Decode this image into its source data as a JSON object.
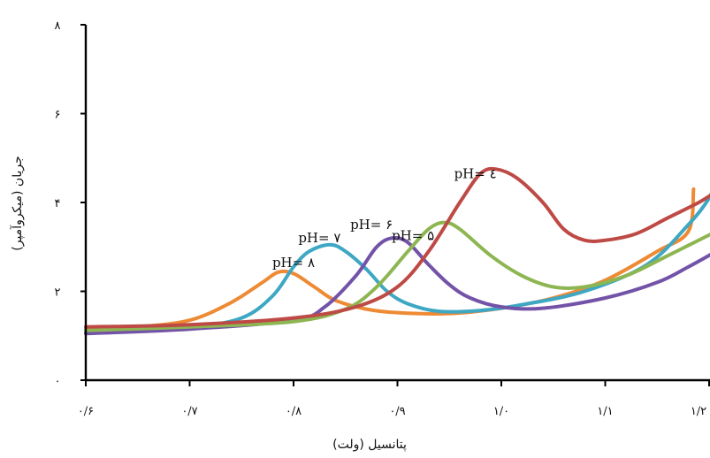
{
  "chart_data": {
    "type": "line",
    "title": "",
    "xlabel": "پتانسیل (ولت)",
    "ylabel": "جریان (میکروآمپر)",
    "xlim": [
      0.6,
      1.2
    ],
    "ylim": [
      0,
      8
    ],
    "x_ticks": [
      {
        "value": 0.6,
        "label": "۰/۶"
      },
      {
        "value": 0.7,
        "label": "۰/۷"
      },
      {
        "value": 0.8,
        "label": "۰/۸"
      },
      {
        "value": 0.9,
        "label": "۰/۹"
      },
      {
        "value": 1.0,
        "label": "۱/۰"
      },
      {
        "value": 1.1,
        "label": "۱/۱"
      },
      {
        "value": 1.2,
        "label": "۱/۲"
      }
    ],
    "y_ticks": [
      {
        "value": 0,
        "label": "۰"
      },
      {
        "value": 2,
        "label": "۲"
      },
      {
        "value": 4,
        "label": "۴"
      },
      {
        "value": 6,
        "label": "۶"
      },
      {
        "value": 8,
        "label": "۸"
      }
    ],
    "grid": false,
    "series": [
      {
        "name": "pH= ۸",
        "color": "#ee8a34",
        "label_at": [
          0.8,
          2.55
        ],
        "points": [
          [
            0.6,
            1.15
          ],
          [
            0.65,
            1.2
          ],
          [
            0.7,
            1.35
          ],
          [
            0.74,
            1.75
          ],
          [
            0.77,
            2.2
          ],
          [
            0.785,
            2.43
          ],
          [
            0.8,
            2.4
          ],
          [
            0.82,
            2.1
          ],
          [
            0.84,
            1.8
          ],
          [
            0.87,
            1.6
          ],
          [
            0.9,
            1.52
          ],
          [
            0.95,
            1.5
          ],
          [
            1.0,
            1.62
          ],
          [
            1.05,
            1.85
          ],
          [
            1.1,
            2.25
          ],
          [
            1.15,
            2.9
          ],
          [
            1.18,
            3.35
          ],
          [
            1.185,
            4.3
          ]
        ]
      },
      {
        "name": "pH= ۷",
        "color": "#3ea7c3",
        "label_at": [
          0.825,
          3.1
        ],
        "points": [
          [
            0.6,
            1.08
          ],
          [
            0.7,
            1.2
          ],
          [
            0.75,
            1.4
          ],
          [
            0.78,
            1.9
          ],
          [
            0.8,
            2.55
          ],
          [
            0.815,
            2.9
          ],
          [
            0.835,
            3.05
          ],
          [
            0.85,
            2.9
          ],
          [
            0.87,
            2.5
          ],
          [
            0.89,
            2.0
          ],
          [
            0.91,
            1.72
          ],
          [
            0.94,
            1.55
          ],
          [
            0.98,
            1.57
          ],
          [
            1.02,
            1.7
          ],
          [
            1.08,
            2.0
          ],
          [
            1.14,
            2.6
          ],
          [
            1.18,
            3.5
          ],
          [
            1.2,
            4.1
          ],
          [
            1.207,
            4.55
          ]
        ]
      },
      {
        "name": "pH= ۶",
        "color": "#7353a8",
        "label_at": [
          0.875,
          3.4
        ],
        "points": [
          [
            0.6,
            1.05
          ],
          [
            0.7,
            1.15
          ],
          [
            0.8,
            1.35
          ],
          [
            0.83,
            1.65
          ],
          [
            0.86,
            2.35
          ],
          [
            0.88,
            3.0
          ],
          [
            0.895,
            3.2
          ],
          [
            0.91,
            3.1
          ],
          [
            0.93,
            2.6
          ],
          [
            0.95,
            2.15
          ],
          [
            0.97,
            1.85
          ],
          [
            1.0,
            1.65
          ],
          [
            1.04,
            1.62
          ],
          [
            1.1,
            1.85
          ],
          [
            1.15,
            2.2
          ],
          [
            1.18,
            2.55
          ],
          [
            1.207,
            2.9
          ]
        ]
      },
      {
        "name": "pH= ۵",
        "color": "#8db653",
        "label_at": [
          0.915,
          3.15
        ],
        "points": [
          [
            0.6,
            1.12
          ],
          [
            0.7,
            1.2
          ],
          [
            0.8,
            1.32
          ],
          [
            0.85,
            1.6
          ],
          [
            0.88,
            2.1
          ],
          [
            0.91,
            2.9
          ],
          [
            0.93,
            3.4
          ],
          [
            0.945,
            3.55
          ],
          [
            0.96,
            3.4
          ],
          [
            0.99,
            2.8
          ],
          [
            1.02,
            2.35
          ],
          [
            1.05,
            2.1
          ],
          [
            1.08,
            2.1
          ],
          [
            1.12,
            2.35
          ],
          [
            1.16,
            2.8
          ],
          [
            1.207,
            3.35
          ]
        ]
      },
      {
        "name": "pH= ٤",
        "color": "#be4a45",
        "label_at": [
          0.975,
          4.55
        ],
        "points": [
          [
            0.6,
            1.2
          ],
          [
            0.7,
            1.25
          ],
          [
            0.8,
            1.4
          ],
          [
            0.86,
            1.65
          ],
          [
            0.9,
            2.1
          ],
          [
            0.93,
            2.9
          ],
          [
            0.96,
            4.0
          ],
          [
            0.98,
            4.65
          ],
          [
            0.995,
            4.75
          ],
          [
            1.015,
            4.55
          ],
          [
            1.04,
            4.0
          ],
          [
            1.06,
            3.4
          ],
          [
            1.08,
            3.15
          ],
          [
            1.1,
            3.15
          ],
          [
            1.13,
            3.3
          ],
          [
            1.16,
            3.65
          ],
          [
            1.19,
            4.0
          ],
          [
            1.207,
            4.25
          ]
        ]
      }
    ]
  }
}
